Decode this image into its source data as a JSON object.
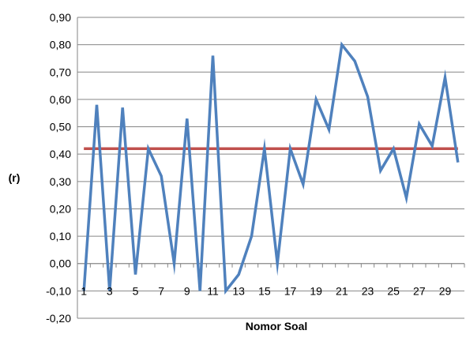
{
  "chart_data": {
    "type": "line",
    "xlabel": "Nomor Soal",
    "ylabel": "(r)",
    "ylim": [
      -0.2,
      0.9
    ],
    "y_ticks": [
      "-0,20",
      "-0,10",
      "0,00",
      "0,10",
      "0,20",
      "0,30",
      "0,40",
      "0,50",
      "0,60",
      "0,70",
      "0,80",
      "0,90"
    ],
    "x_tick_labels": [
      "1",
      "3",
      "5",
      "7",
      "9",
      "11",
      "13",
      "15",
      "17",
      "19",
      "21",
      "23",
      "25",
      "27",
      "29"
    ],
    "grid": true,
    "legend": "none",
    "x": [
      1,
      2,
      3,
      4,
      5,
      6,
      7,
      8,
      9,
      10,
      11,
      12,
      13,
      14,
      15,
      16,
      17,
      18,
      19,
      20,
      21,
      22,
      23,
      24,
      25,
      26,
      27,
      28,
      29,
      30
    ],
    "series": [
      {
        "values": [
          -0.1,
          0.58,
          -0.1,
          0.57,
          -0.04,
          0.42,
          0.32,
          0.0,
          0.53,
          -0.1,
          0.76,
          -0.1,
          -0.04,
          0.1,
          0.42,
          0.0,
          0.42,
          0.29,
          0.6,
          0.49,
          0.8,
          0.74,
          0.61,
          0.34,
          0.42,
          0.24,
          0.51,
          0.43,
          0.68,
          0.37
        ],
        "color": "#4f81bd"
      }
    ],
    "reference_line": {
      "value": 0.42,
      "color": "#c0504d"
    }
  }
}
